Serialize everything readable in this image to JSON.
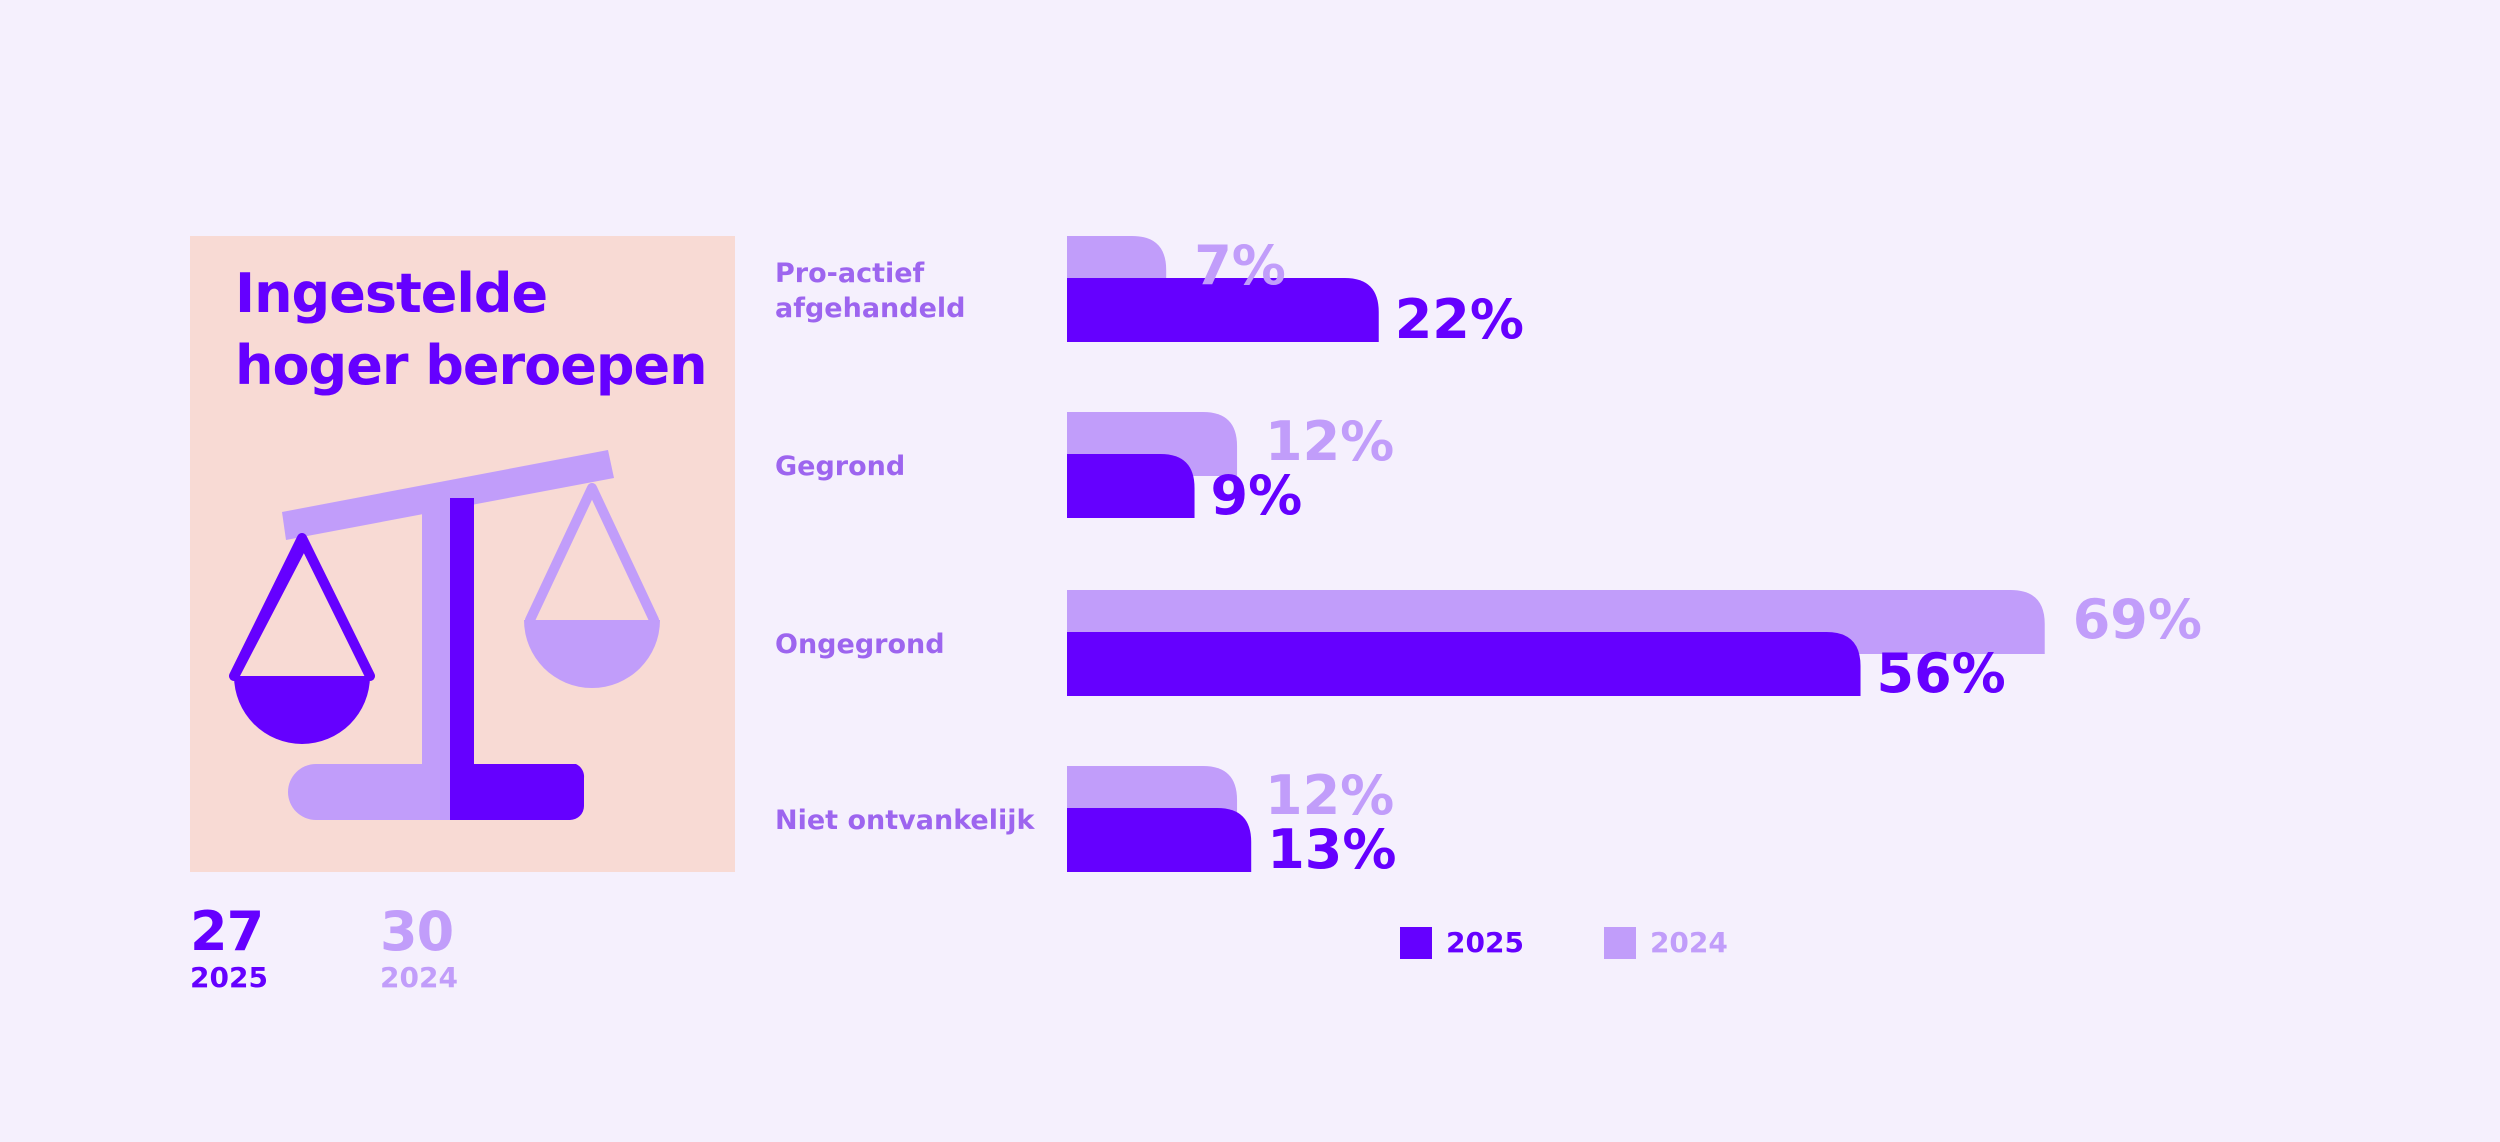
{
  "colors": {
    "background": "#f5f0fd",
    "panel": "#f8dad4",
    "y2025": "#6500ff",
    "y2024": "#c19dfa",
    "label": "#9d65ef"
  },
  "panel": {
    "title_line1": "Ingestelde",
    "title_line2": "hoger beroepen"
  },
  "totals": [
    {
      "value": "27",
      "year": "2025"
    },
    {
      "value": "30",
      "year": "2024"
    }
  ],
  "chart_data": {
    "type": "bar",
    "orientation": "horizontal",
    "title": "Ingestelde hoger beroepen",
    "categories": [
      [
        "Pro-actief",
        "afgehandeld"
      ],
      [
        "Gegrond"
      ],
      [
        "Ongegrond"
      ],
      [
        "Niet ontvankelijk"
      ]
    ],
    "series": [
      {
        "name": "2024",
        "values": [
          7,
          12,
          69,
          12
        ],
        "labels": [
          "7%",
          "12%",
          "69%",
          "12%"
        ]
      },
      {
        "name": "2025",
        "values": [
          22,
          9,
          56,
          13
        ],
        "labels": [
          "22%",
          "9%",
          "56%",
          "13%"
        ]
      }
    ],
    "unit": "%",
    "xlim": [
      0,
      69
    ],
    "legend": "bottom"
  },
  "legend": [
    {
      "label": "2025",
      "color": "#6500ff"
    },
    {
      "label": "2024",
      "color": "#c19dfa"
    }
  ]
}
